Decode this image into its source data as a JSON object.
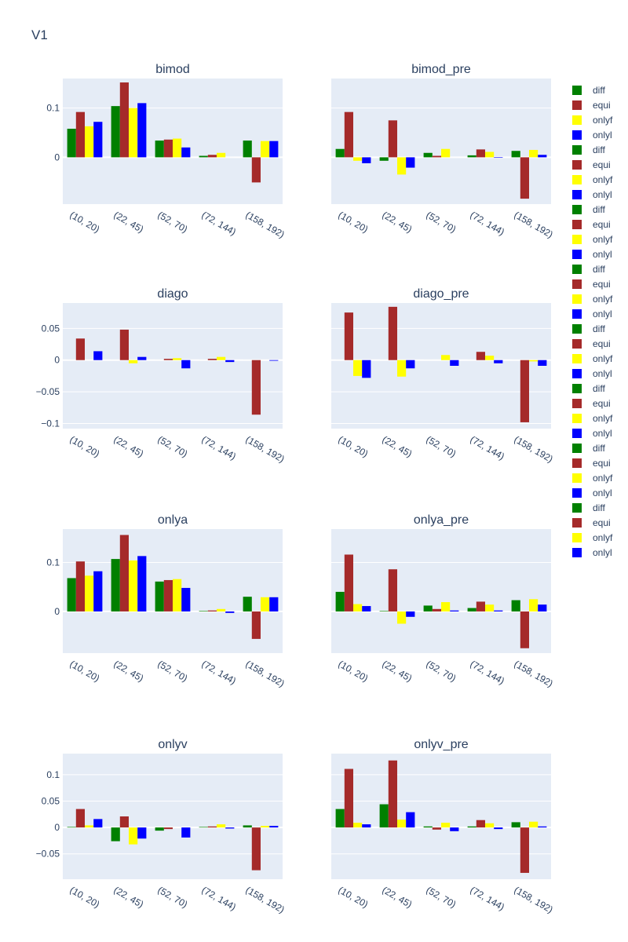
{
  "figure": {
    "title": "V1"
  },
  "colors": {
    "diff": "#008000",
    "equi": "#a52a2a",
    "onlyf": "#ffff00",
    "onlyl": "#0000ff"
  },
  "chart_data": [
    {
      "type": "bar",
      "title": "bimod",
      "categories": [
        "(10, 20)",
        "(22, 45)",
        "(52, 70)",
        "(72, 144)",
        "(158, 192)"
      ],
      "ylim": [
        -0.095,
        0.16
      ],
      "yticks": [
        0,
        0.1
      ],
      "ytick_labels": [
        "0",
        "0.1"
      ],
      "series": [
        {
          "name": "diff",
          "values": [
            0.058,
            0.104,
            0.034,
            0.003,
            0.034
          ]
        },
        {
          "name": "equi",
          "values": [
            0.092,
            0.152,
            0.036,
            0.005,
            -0.051
          ]
        },
        {
          "name": "onlyf",
          "values": [
            0.063,
            0.1,
            0.038,
            0.009,
            0.033
          ]
        },
        {
          "name": "onlyl",
          "values": [
            0.072,
            0.11,
            0.02,
            0.0,
            0.033
          ]
        }
      ]
    },
    {
      "type": "bar",
      "title": "bimod_pre",
      "categories": [
        "(10, 20)",
        "(22, 45)",
        "(52, 70)",
        "(72, 144)",
        "(158, 192)"
      ],
      "ylim": [
        -0.095,
        0.16
      ],
      "yticks": [
        0,
        0.1
      ],
      "ytick_labels": [
        "0",
        "0.1"
      ],
      "series": [
        {
          "name": "diff",
          "values": [
            0.017,
            -0.007,
            0.009,
            0.004,
            0.013
          ]
        },
        {
          "name": "equi",
          "values": [
            0.092,
            0.075,
            0.003,
            0.016,
            -0.084
          ]
        },
        {
          "name": "onlyf",
          "values": [
            -0.007,
            -0.035,
            0.017,
            0.011,
            0.015
          ]
        },
        {
          "name": "onlyl",
          "values": [
            -0.012,
            -0.021,
            0.0,
            -0.001,
            0.005
          ]
        }
      ]
    },
    {
      "type": "bar",
      "title": "diago",
      "categories": [
        "(10, 20)",
        "(22, 45)",
        "(52, 70)",
        "(72, 144)",
        "(158, 192)"
      ],
      "ylim": [
        -0.108,
        0.09
      ],
      "yticks": [
        -0.1,
        -0.05,
        0,
        0.05
      ],
      "ytick_labels": [
        "−0.1",
        "−0.05",
        "0",
        "0.05"
      ],
      "series": [
        {
          "name": "diff",
          "values": [
            0.0,
            0.0,
            0.0,
            0.0,
            0.0
          ]
        },
        {
          "name": "equi",
          "values": [
            0.034,
            0.048,
            0.002,
            0.002,
            -0.086
          ]
        },
        {
          "name": "onlyf",
          "values": [
            0.0,
            -0.005,
            0.003,
            0.005,
            0.0
          ]
        },
        {
          "name": "onlyl",
          "values": [
            0.014,
            0.005,
            -0.013,
            -0.003,
            -0.001
          ]
        }
      ]
    },
    {
      "type": "bar",
      "title": "diago_pre",
      "categories": [
        "(10, 20)",
        "(22, 45)",
        "(52, 70)",
        "(72, 144)",
        "(158, 192)"
      ],
      "ylim": [
        -0.108,
        0.09
      ],
      "yticks": [
        -0.1,
        -0.05,
        0,
        0.05
      ],
      "ytick_labels": [
        "−0.1",
        "−0.05",
        "0",
        "0.05"
      ],
      "series": [
        {
          "name": "diff",
          "values": [
            0.0,
            0.0,
            0.0,
            0.0,
            0.0
          ]
        },
        {
          "name": "equi",
          "values": [
            0.075,
            0.084,
            0.0,
            0.013,
            -0.098
          ]
        },
        {
          "name": "onlyf",
          "values": [
            -0.025,
            -0.026,
            0.008,
            0.007,
            -0.002
          ]
        },
        {
          "name": "onlyl",
          "values": [
            -0.028,
            -0.013,
            -0.009,
            -0.005,
            -0.009
          ]
        }
      ]
    },
    {
      "type": "bar",
      "title": "onlya",
      "categories": [
        "(10, 20)",
        "(22, 45)",
        "(52, 70)",
        "(72, 144)",
        "(158, 192)"
      ],
      "ylim": [
        -0.085,
        0.168
      ],
      "yticks": [
        0,
        0.1
      ],
      "ytick_labels": [
        "0",
        "0.1"
      ],
      "series": [
        {
          "name": "diff",
          "values": [
            0.068,
            0.107,
            0.061,
            0.001,
            0.03
          ]
        },
        {
          "name": "equi",
          "values": [
            0.102,
            0.156,
            0.064,
            0.002,
            -0.056
          ]
        },
        {
          "name": "onlyf",
          "values": [
            0.073,
            0.104,
            0.066,
            0.005,
            0.029
          ]
        },
        {
          "name": "onlyl",
          "values": [
            0.082,
            0.113,
            0.048,
            -0.003,
            0.029
          ]
        }
      ]
    },
    {
      "type": "bar",
      "title": "onlya_pre",
      "categories": [
        "(10, 20)",
        "(22, 45)",
        "(52, 70)",
        "(72, 144)",
        "(158, 192)"
      ],
      "ylim": [
        -0.085,
        0.168
      ],
      "yticks": [
        0,
        0.1
      ],
      "ytick_labels": [
        "0",
        "0.1"
      ],
      "series": [
        {
          "name": "diff",
          "values": [
            0.04,
            0.001,
            0.012,
            0.007,
            0.023
          ]
        },
        {
          "name": "equi",
          "values": [
            0.116,
            0.086,
            0.005,
            0.02,
            -0.075
          ]
        },
        {
          "name": "onlyf",
          "values": [
            0.015,
            -0.025,
            0.019,
            0.014,
            0.025
          ]
        },
        {
          "name": "onlyl",
          "values": [
            0.011,
            -0.011,
            0.002,
            0.002,
            0.014
          ]
        }
      ]
    },
    {
      "type": "bar",
      "title": "onlyv",
      "categories": [
        "(10, 20)",
        "(22, 45)",
        "(52, 70)",
        "(72, 144)",
        "(158, 192)"
      ],
      "ylim": [
        -0.098,
        0.14
      ],
      "yticks": [
        -0.05,
        0,
        0.05,
        0.1
      ],
      "ytick_labels": [
        "−0.05",
        "0",
        "0.05",
        "0.1"
      ],
      "series": [
        {
          "name": "diff",
          "values": [
            0.001,
            -0.026,
            -0.006,
            0.001,
            0.004
          ]
        },
        {
          "name": "equi",
          "values": [
            0.035,
            0.021,
            -0.003,
            0.002,
            -0.081
          ]
        },
        {
          "name": "onlyf",
          "values": [
            0.004,
            -0.032,
            0.0,
            0.006,
            0.003
          ]
        },
        {
          "name": "onlyl",
          "values": [
            0.016,
            -0.021,
            -0.019,
            -0.002,
            0.003
          ]
        }
      ]
    },
    {
      "type": "bar",
      "title": "onlyv_pre",
      "categories": [
        "(10, 20)",
        "(22, 45)",
        "(52, 70)",
        "(72, 144)",
        "(158, 192)"
      ],
      "ylim": [
        -0.098,
        0.14
      ],
      "yticks": [
        -0.05,
        0,
        0.05,
        0.1
      ],
      "ytick_labels": [
        "−0.05",
        "0",
        "0.05",
        "0.1"
      ],
      "series": [
        {
          "name": "diff",
          "values": [
            0.035,
            0.044,
            0.002,
            0.002,
            0.01
          ]
        },
        {
          "name": "equi",
          "values": [
            0.111,
            0.127,
            -0.004,
            0.014,
            -0.086
          ]
        },
        {
          "name": "onlyf",
          "values": [
            0.009,
            0.015,
            0.009,
            0.008,
            0.011
          ]
        },
        {
          "name": "onlyl",
          "values": [
            0.006,
            0.029,
            -0.007,
            -0.003,
            0.002
          ]
        }
      ]
    }
  ],
  "legend": {
    "position": "right",
    "entries": [
      "diff",
      "equi",
      "onlyf",
      "onlyl",
      "diff",
      "equi",
      "onlyf",
      "onlyl",
      "diff",
      "equi",
      "onlyf",
      "onlyl",
      "diff",
      "equi",
      "onlyf",
      "onlyl",
      "diff",
      "equi",
      "onlyf",
      "onlyl",
      "diff",
      "equi",
      "onlyf",
      "onlyl",
      "diff",
      "equi",
      "onlyf",
      "onlyl",
      "diff",
      "equi",
      "onlyf",
      "onlyl"
    ]
  }
}
